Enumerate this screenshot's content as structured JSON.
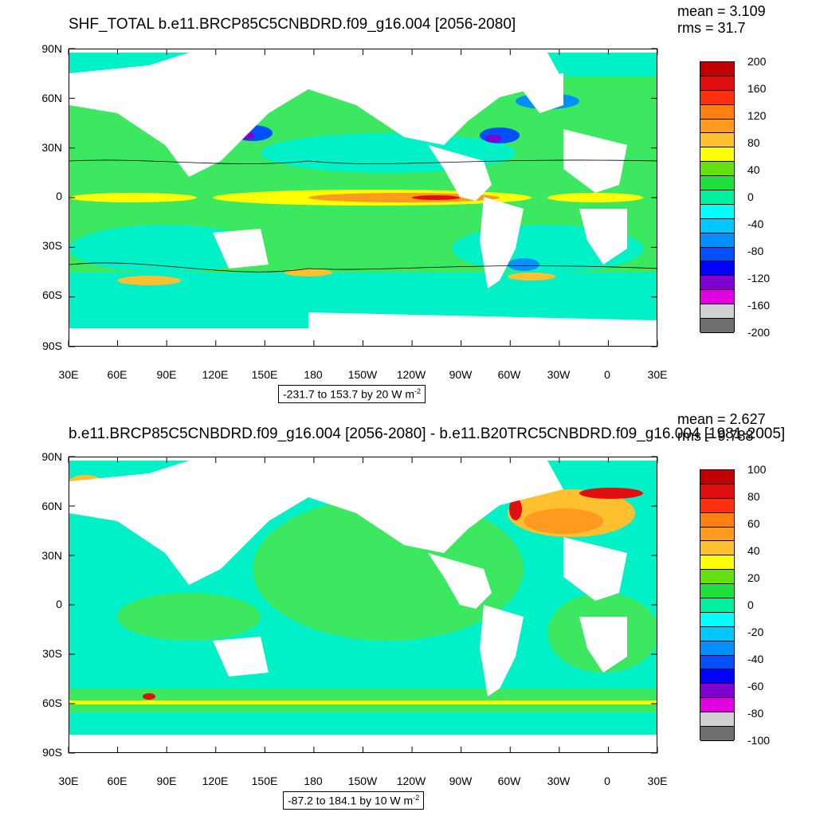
{
  "panels": [
    {
      "title": "SHF_TOTAL b.e11.BRCP85C5CNBDRD.f09_g16.004 [2056-2080]",
      "mean": "mean = 3.109",
      "rms": "rms = 31.7",
      "range": "-231.7 to 153.7 by 20  W m",
      "range_exp": "-2",
      "colorbar": {
        "labels": [
          "200",
          "160",
          "120",
          "80",
          "40",
          "0",
          "-40",
          "-80",
          "-120",
          "-160",
          "-200"
        ],
        "colors": [
          "#c00000",
          "#e01010",
          "#ff3010",
          "#ff8010",
          "#ff9a20",
          "#ffc030",
          "#ffff00",
          "#66e010",
          "#20e040",
          "#00f0a0",
          "#00ffff",
          "#00c8ff",
          "#0090ff",
          "#0050ff",
          "#0000ff",
          "#8000d0",
          "#e000e0",
          "#d0d0d0",
          "#707070"
        ]
      }
    },
    {
      "title": "b.e11.BRCP85C5CNBDRD.f09_g16.004 [2056-2080] - b.e11.B20TRC5CNBDRD.f09_g16.004 [1981-2005]",
      "mean": "mean = 2.627",
      "rms": "rms = 9.788",
      "range": "-87.2 to 184.1 by 10  W m",
      "range_exp": "-2",
      "colorbar": {
        "labels": [
          "100",
          "80",
          "60",
          "40",
          "20",
          "0",
          "-20",
          "-40",
          "-60",
          "-80",
          "-100"
        ],
        "colors": [
          "#c00000",
          "#e01010",
          "#ff3010",
          "#ff8010",
          "#ff9a20",
          "#ffc030",
          "#ffff00",
          "#66e010",
          "#20e040",
          "#00f0a0",
          "#00ffff",
          "#00c8ff",
          "#0090ff",
          "#0050ff",
          "#0000ff",
          "#8000d0",
          "#e000e0",
          "#d0d0d0",
          "#707070"
        ]
      }
    }
  ],
  "axes": {
    "lat_labels": [
      "90N",
      "60N",
      "30N",
      "0",
      "30S",
      "60S",
      "90S"
    ],
    "lon_labels": [
      "30E",
      "60E",
      "90E",
      "120E",
      "150E",
      "180",
      "150W",
      "120W",
      "90W",
      "60W",
      "30W",
      "0",
      "30E"
    ]
  }
}
